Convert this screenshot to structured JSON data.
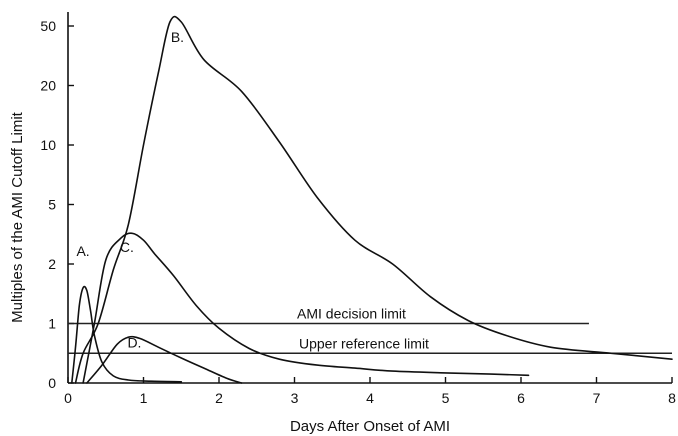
{
  "chart_data": {
    "type": "line",
    "title": "",
    "xlabel": "Days After Onset of AMI",
    "ylabel": "Multiples of the AMI Cutoff Limit",
    "x_ticks": [
      0,
      1,
      2,
      3,
      4,
      5,
      6,
      7,
      8
    ],
    "y_ticks": [
      0,
      1,
      2,
      5,
      10,
      20,
      50
    ],
    "xlim": [
      0,
      8
    ],
    "ylim": [
      0,
      50
    ],
    "y_scale": "nonlinear (0, 1, 2, 5, 10, 20, 50 roughly evenly spaced)",
    "grid": false,
    "series": [
      {
        "name": "A.",
        "points": [
          [
            0.05,
            0
          ],
          [
            0.1,
            0.6
          ],
          [
            0.15,
            1.3
          ],
          [
            0.2,
            1.6
          ],
          [
            0.25,
            1.55
          ],
          [
            0.3,
            1.2
          ],
          [
            0.35,
            0.8
          ],
          [
            0.45,
            0.35
          ],
          [
            0.6,
            0.12
          ],
          [
            0.8,
            0.05
          ],
          [
            1.1,
            0.03
          ],
          [
            1.5,
            0.02
          ]
        ]
      },
      {
        "name": "B.",
        "points": [
          [
            0.1,
            0
          ],
          [
            0.2,
            0.5
          ],
          [
            0.4,
            1
          ],
          [
            0.6,
            1.9
          ],
          [
            0.8,
            4
          ],
          [
            1.0,
            10
          ],
          [
            1.2,
            27
          ],
          [
            1.35,
            52
          ],
          [
            1.5,
            52
          ],
          [
            1.8,
            33
          ],
          [
            2.3,
            19
          ],
          [
            2.8,
            10.5
          ],
          [
            3.3,
            5.6
          ],
          [
            3.8,
            3.2
          ],
          [
            4.3,
            2
          ],
          [
            4.8,
            1.45
          ],
          [
            5.3,
            1.05
          ],
          [
            5.8,
            0.8
          ],
          [
            6.4,
            0.6
          ],
          [
            7.2,
            0.5
          ],
          [
            8.0,
            0.4
          ]
        ]
      },
      {
        "name": "C.",
        "points": [
          [
            0.2,
            0
          ],
          [
            0.35,
            1
          ],
          [
            0.5,
            2.2
          ],
          [
            0.7,
            3.3
          ],
          [
            0.85,
            3.55
          ],
          [
            1.0,
            3.2
          ],
          [
            1.15,
            2.5
          ],
          [
            1.4,
            1.8
          ],
          [
            1.7,
            1.3
          ],
          [
            2.0,
            0.92
          ],
          [
            2.4,
            0.58
          ],
          [
            2.8,
            0.4
          ],
          [
            3.3,
            0.3
          ],
          [
            3.8,
            0.25
          ],
          [
            4.3,
            0.2
          ],
          [
            5.0,
            0.17
          ],
          [
            5.6,
            0.15
          ],
          [
            6.1,
            0.13
          ]
        ]
      },
      {
        "name": "D.",
        "points": [
          [
            0.25,
            0
          ],
          [
            0.45,
            0.3
          ],
          [
            0.65,
            0.65
          ],
          [
            0.8,
            0.77
          ],
          [
            0.95,
            0.75
          ],
          [
            1.2,
            0.6
          ],
          [
            1.5,
            0.42
          ],
          [
            1.8,
            0.25
          ],
          [
            2.1,
            0.08
          ],
          [
            2.3,
            0
          ]
        ]
      }
    ],
    "reference_lines": [
      {
        "name": "AMI decision limit",
        "y": 1,
        "x_range": [
          0,
          6.9
        ]
      },
      {
        "name": "Upper reference limit",
        "y": 0.5,
        "x_range": [
          0,
          8
        ]
      }
    ],
    "annotations": [
      {
        "text": "A.",
        "x": 0.2,
        "y": 2.4
      },
      {
        "text": "B.",
        "x": 1.45,
        "y": 42
      },
      {
        "text": "C.",
        "x": 0.78,
        "y": 2.6
      },
      {
        "text": "D.",
        "x": 0.88,
        "y": 0.6
      }
    ]
  }
}
